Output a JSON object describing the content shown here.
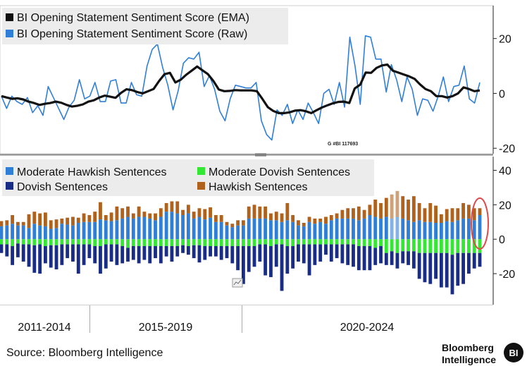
{
  "colors": {
    "ema": "#111111",
    "raw": "#2f7fd8",
    "moderate_hawkish": "#2f7fd8",
    "moderate_dovish": "#33e833",
    "dovish": "#1a2d86",
    "hawkish": "#b0621c",
    "highlight": "#e04848"
  },
  "chart_data": [
    {
      "type": "line",
      "series": [
        {
          "name": "BI Opening Statement Sentiment Score (EMA)",
          "values": [
            -1,
            -1.5,
            -2,
            -1.8,
            -2.2,
            -3,
            -3.5,
            -4.2,
            -3.8,
            -3.5,
            -3,
            -3.4,
            -4.2,
            -4.8,
            -4.5,
            -4,
            -3,
            -2.5,
            -1.5,
            -0.8,
            -1.2,
            -1.6,
            0.2,
            1.5,
            1.2,
            0.5,
            0,
            0.8,
            1.6,
            4.5,
            7,
            7.5,
            4,
            5,
            6.8,
            8.3,
            9.8,
            8.4,
            7,
            4.5,
            1.4,
            0.8,
            0.9,
            1.2,
            1.1,
            1.1,
            1.1,
            0.8,
            -2,
            -5,
            -6.4,
            -7.2,
            -7.2,
            -6.9,
            -6.3,
            -6.1,
            -6.5,
            -7.2,
            -6.1,
            -5.1,
            -4.3,
            -3.6,
            -3.1,
            -3,
            -3.5,
            1.8,
            3.2,
            7.6,
            7.5,
            9.3,
            10.2,
            10.5,
            8.3,
            7.6,
            6.9,
            6.2,
            5.3,
            3.3,
            1.6,
            0.8,
            -1,
            -1,
            -1.5,
            -1,
            0,
            2.2,
            1.6,
            0.8,
            1.1
          ]
        },
        {
          "name": "BI Opening Statement Sentiment Score (Raw)",
          "values": [
            -1,
            -5.5,
            -1,
            -3,
            -4,
            -1.5,
            -7,
            -4.5,
            -8,
            2.5,
            -1.5,
            -5.5,
            -9.5,
            -5,
            -2.5,
            5,
            -2,
            -1,
            4,
            -3,
            -3,
            4.5,
            5,
            -3.5,
            -3.5,
            4,
            -0.5,
            -1,
            10,
            16,
            18,
            9.5,
            3,
            -6,
            1,
            11,
            13,
            12.5,
            15,
            2.5,
            6.5,
            1.5,
            -6.5,
            -10,
            -2,
            3,
            2.5,
            2,
            2,
            4,
            -10,
            -15,
            -17,
            -6,
            -8,
            -4,
            -11,
            -6,
            -9.5,
            -3.5,
            -7,
            -11,
            0,
            1.5,
            -4,
            4,
            -5,
            20.5,
            10,
            -4,
            21,
            20.5,
            12.5,
            12.5,
            0.5,
            10.5,
            5,
            -3,
            6,
            1.5,
            -8,
            -2,
            -2.5,
            -6.5,
            -1,
            6,
            -3,
            2.5,
            3,
            10,
            -2,
            -3.5,
            4
          ]
        }
      ],
      "title": "",
      "xlabel": "",
      "ylabel": "",
      "ylim": [
        -22,
        32
      ],
      "yticks": [
        "20",
        "0",
        "-20"
      ],
      "annotation": "G #BI 117693"
    },
    {
      "type": "bar",
      "stacked": true,
      "series": [
        {
          "name": "Moderate Hawkish Sentences",
          "values": [
            7.5,
            8,
            9,
            8,
            8,
            6.5,
            9,
            8,
            7.5,
            6,
            6.5,
            9,
            8.5,
            8,
            9.5,
            10,
            10,
            10,
            11.5,
            11,
            10.5,
            11,
            12,
            13,
            12,
            13,
            13,
            12,
            11,
            13,
            16,
            16,
            15,
            14,
            15,
            12,
            13,
            11.5,
            12.5,
            10,
            10,
            8,
            7,
            8,
            8,
            12,
            12,
            12,
            12,
            11,
            11,
            10,
            11,
            10,
            8,
            7.5,
            10,
            9,
            10,
            9,
            11,
            12,
            12,
            12,
            12,
            11,
            12,
            14,
            13,
            12,
            13,
            12,
            13,
            12,
            11,
            10,
            11,
            10,
            10,
            9.5,
            9.5,
            10.5,
            10,
            11,
            12,
            12,
            11,
            14
          ]
        },
        {
          "name": "Hawkish Sentences",
          "values": [
            3,
            3,
            5,
            2,
            2,
            8,
            7,
            7,
            8,
            5,
            5,
            3,
            4,
            5,
            3,
            5,
            4,
            6,
            10,
            3,
            5,
            8,
            6,
            6,
            3,
            6,
            3,
            3,
            4,
            5,
            5,
            6,
            7,
            3,
            5,
            4,
            5,
            6,
            6,
            4,
            4,
            2,
            2,
            3,
            3,
            7,
            8,
            7,
            7,
            4,
            5,
            5,
            10,
            4,
            3,
            2,
            3,
            3,
            2,
            4,
            3,
            3,
            5,
            6,
            6,
            8,
            5,
            6,
            10,
            9,
            11,
            14,
            15,
            13,
            12,
            15,
            10,
            8,
            11,
            10,
            5,
            7,
            8,
            7,
            9,
            8,
            7,
            4
          ]
        },
        {
          "name": "Moderate Dovish Sentences",
          "values": [
            -3,
            -3,
            -4,
            -2.5,
            -3,
            -3,
            -3.5,
            -3,
            -4,
            -3.5,
            -3.5,
            -3,
            -3,
            -3,
            -3,
            -3,
            -3,
            -4,
            -4,
            -3,
            -3,
            -3,
            -4,
            -5,
            -4,
            -4,
            -4,
            -4,
            -4,
            -4,
            -4,
            -4,
            -4,
            -3.5,
            -4,
            -3.5,
            -3.5,
            -4,
            -4,
            -4,
            -4,
            -4,
            -4,
            -4,
            -4,
            -4,
            -4,
            -3,
            -3,
            -4,
            -3,
            -3,
            -4,
            -4,
            -3,
            -3,
            -3,
            -3,
            -3,
            -3,
            -3,
            -3,
            -3,
            -3,
            -3,
            -4,
            -4,
            -4,
            -5,
            -4,
            -8,
            -7,
            -8,
            -7,
            -7,
            -7,
            -8,
            -8,
            -8,
            -8,
            -8,
            -8,
            -9,
            -8,
            -8,
            -8,
            -8,
            -8
          ]
        },
        {
          "name": "Dovish Sentences",
          "values": [
            -5,
            -7,
            -11,
            -8,
            -10,
            -13,
            -16,
            -17,
            -10,
            -13,
            -14,
            -12,
            -8,
            -10,
            -17,
            -12,
            -8,
            -10,
            -16,
            -14,
            -10,
            -12,
            -10,
            -8,
            -8,
            -10,
            -8,
            -10,
            -7,
            -10,
            -6,
            -9,
            -6,
            -4.5,
            -5,
            -7.5,
            -10,
            -8,
            -6,
            -6,
            -8,
            -7,
            -10,
            -14,
            -22,
            -15,
            -12,
            -10,
            -18,
            -18,
            -13,
            -27,
            -16,
            -13,
            -10,
            -11,
            -18,
            -12,
            -10,
            -6,
            -10,
            -8,
            -11,
            -12,
            -13,
            -14,
            -14,
            -14,
            -10,
            -10,
            -7,
            -8,
            -9,
            -7,
            -8,
            -10,
            -15,
            -17,
            -18,
            -15,
            -20,
            -20,
            -23,
            -19,
            -18,
            -12,
            -9,
            -8
          ]
        }
      ],
      "title": "",
      "xlabel": "",
      "ylabel": "",
      "ylim": [
        -38,
        48
      ],
      "yticks": [
        "40",
        "20",
        "0",
        "-20"
      ]
    }
  ],
  "x_axis": {
    "periods": [
      "2011-2014",
      "2015-2019",
      "2020-2024"
    ]
  },
  "source": "Source: Bloomberg Intelligence",
  "logo": {
    "line1": "Bloomberg",
    "line2": "Intelligence",
    "badge": "BI"
  }
}
